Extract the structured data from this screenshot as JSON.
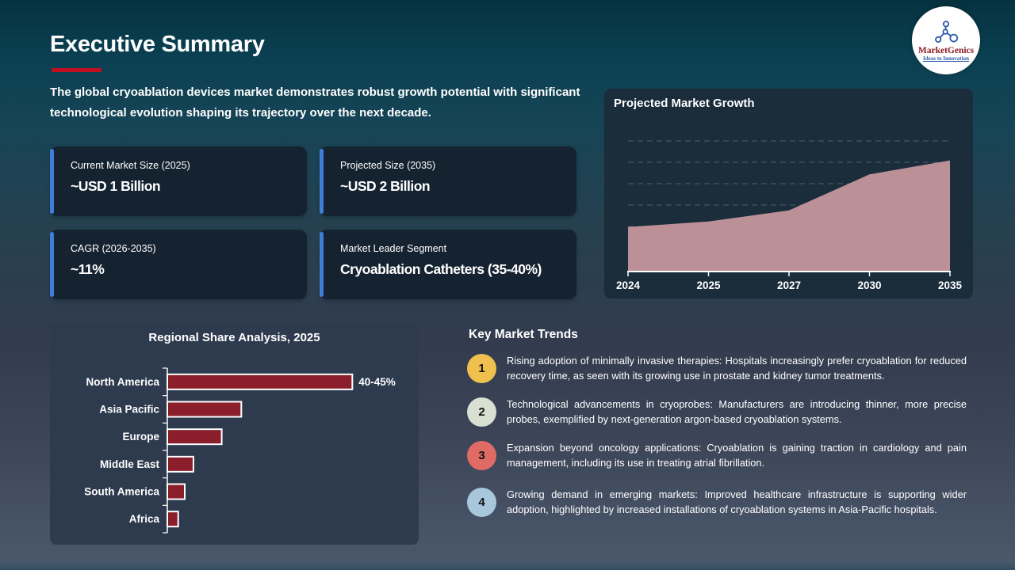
{
  "slide": {
    "title": "Executive Summary",
    "subtitle": "The global cryoablation devices market demonstrates robust growth potential with significant technological evolution shaping its trajectory over the next decade.",
    "accent_color": "#c01020"
  },
  "logo": {
    "name": "MarketGenics",
    "tagline": "Ideas to Innovation",
    "brand_red": "#8c1c22",
    "brand_blue": "#2a5ba8"
  },
  "stat_cards": [
    {
      "label": "Current Market Size (2025)",
      "value": "~USD 1 Billion"
    },
    {
      "label": "Projected Size (2035)",
      "value": "~USD 2 Billion"
    },
    {
      "label": "CAGR (2026-2035)",
      "value": "~11%"
    },
    {
      "label": "Market Leader Segment",
      "value": "Cryoablation Catheters (35-40%)"
    }
  ],
  "chart_data": [
    {
      "type": "area",
      "title": "Projected Market Growth",
      "x": [
        "2024",
        "2025",
        "2027",
        "2030",
        "2035"
      ],
      "values": [
        0.8,
        0.9,
        1.1,
        1.75,
        2.0
      ],
      "units": "USD Billion (estimated from area heights; no y-axis labels shown)",
      "ylim": [
        0,
        2.65
      ],
      "grid": "dashed horizontal gridlines",
      "legend": "none",
      "area_color": "#bb9097",
      "axis_color": "#ffffff"
    },
    {
      "type": "bar",
      "title": "Regional Share Analysis, 2025",
      "orientation": "horizontal",
      "categories": [
        "North America",
        "Asia Pacific",
        "Europe",
        "Middle East",
        "South America",
        "Africa"
      ],
      "values": [
        42.5,
        17,
        12.5,
        6,
        4,
        2.5
      ],
      "units": "% market share (only North America labeled; others estimated)",
      "xlim": [
        0,
        45
      ],
      "value_labels": {
        "North America": "40-45%"
      },
      "bar_color": "#8b1e2b",
      "bar_border": "#ffffff",
      "legend": "none"
    }
  ],
  "trends": {
    "heading": "Key Market Trends",
    "items": [
      {
        "number": "1",
        "color": "#efc04d",
        "text": "Rising adoption of minimally invasive therapies: Hospitals increasingly prefer cryoablation for reduced recovery time, as seen with its growing use in prostate and kidney tumor treatments."
      },
      {
        "number": "2",
        "color": "#d9dfd3",
        "text": "Technological advancements in cryoprobes: Manufacturers are introducing thinner, more precise probes, exemplified by next-generation argon-based cryoablation systems."
      },
      {
        "number": "3",
        "color": "#e06b65",
        "text": "Expansion beyond oncology applications: Cryoablation is gaining traction in cardiology and pain management, including its use in treating atrial fibrillation."
      },
      {
        "number": "4",
        "color": "#a9c7da",
        "text": "Growing demand in emerging markets: Improved healthcare infrastructure is supporting wider adoption, highlighted by increased installations of cryoablation systems in Asia-Pacific hospitals."
      }
    ]
  }
}
